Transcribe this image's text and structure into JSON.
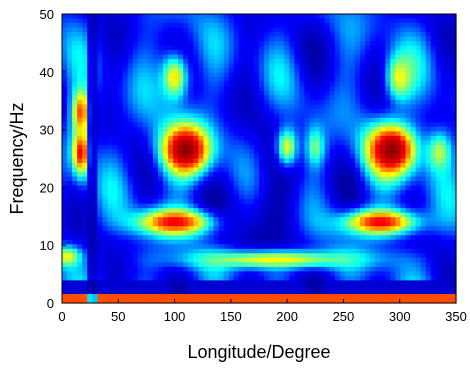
{
  "chart_data": {
    "type": "heatmap",
    "title": "",
    "xlabel": "Longitude/Degree",
    "ylabel": "Frequency/Hz",
    "xlim": [
      0,
      350
    ],
    "ylim": [
      0,
      50
    ],
    "x_ticks": [
      0,
      50,
      100,
      150,
      200,
      250,
      300,
      350
    ],
    "y_ticks": [
      0,
      10,
      20,
      30,
      40,
      50
    ],
    "colormap": "jet",
    "colormap_stops": [
      "#00008f",
      "#0000ff",
      "#00ffff",
      "#ffff00",
      "#ff0000",
      "#800000"
    ],
    "grid": false,
    "value_range": [
      0,
      1
    ],
    "hotspots": [
      {
        "x": 110,
        "y": 26.5,
        "value": 0.98
      },
      {
        "x": 293,
        "y": 26.5,
        "value": 0.98
      },
      {
        "x": 17,
        "y": 26,
        "value": 0.82
      },
      {
        "x": 17,
        "y": 33,
        "value": 0.75
      },
      {
        "x": 100,
        "y": 14,
        "value": 0.82
      },
      {
        "x": 283,
        "y": 14,
        "value": 0.82
      },
      {
        "x": 190,
        "y": 7.5,
        "value": 0.6
      },
      {
        "x": 100,
        "y": 39,
        "value": 0.62
      },
      {
        "x": 300,
        "y": 39,
        "value": 0.6
      },
      {
        "x": 200,
        "y": 27,
        "value": 0.58
      },
      {
        "x": 225,
        "y": 27,
        "value": 0.5
      },
      {
        "x": 5,
        "y": 8,
        "value": 0.6
      },
      {
        "x": 335,
        "y": 26,
        "value": 0.55
      }
    ],
    "bands": [
      {
        "y": 0.5,
        "value": 0.75,
        "note": "bright band along bottom"
      },
      {
        "x": 27,
        "value": 0.05,
        "note": "dark vertical strip"
      }
    ]
  }
}
